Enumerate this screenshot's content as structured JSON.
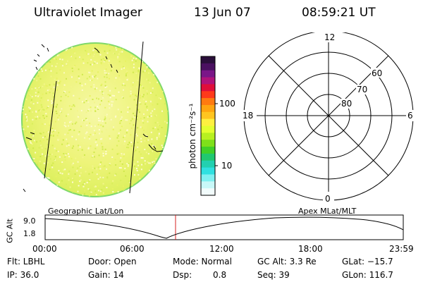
{
  "header": {
    "title": "Ultraviolet Imager",
    "date": "13 Jun 07",
    "time": "08:59:21 UT"
  },
  "colorbar": {
    "unit_label": "photon cm⁻²s⁻¹",
    "ticks": [
      "100",
      "10"
    ]
  },
  "polar_plot": {
    "mlt_labels": [
      "12",
      "18",
      "6",
      "0"
    ],
    "lat_labels": [
      "60",
      "70",
      "80"
    ]
  },
  "image_panel": {
    "left_label": "Geographic Lat/Lon",
    "right_label": "Apex MLat/MLT"
  },
  "altitude_plot": {
    "axis_label": "GC Alt",
    "y_ticks": [
      "9.0",
      "1.8"
    ],
    "x_ticks": [
      "00:00",
      "06:00",
      "12:00",
      "18:00",
      "23:59"
    ],
    "marker_time": "08:59"
  },
  "status": {
    "filter": "Flt: LBHL",
    "ip": "IP: 36.0",
    "door": "Door: Open",
    "gain": "Gain: 14",
    "mode": "Mode: Normal",
    "dsp_label": "Dsp:",
    "dsp_value": "0.8",
    "gc_alt": "GC Alt: 3.3 Re",
    "seq": "Seq: 39",
    "glat": "GLat: −15.7",
    "glon": "GLon: 116.7"
  },
  "colors": {
    "disc_fill": "#e6f25a",
    "disc_edge": "#7fd86a",
    "marker": "#d42020"
  }
}
